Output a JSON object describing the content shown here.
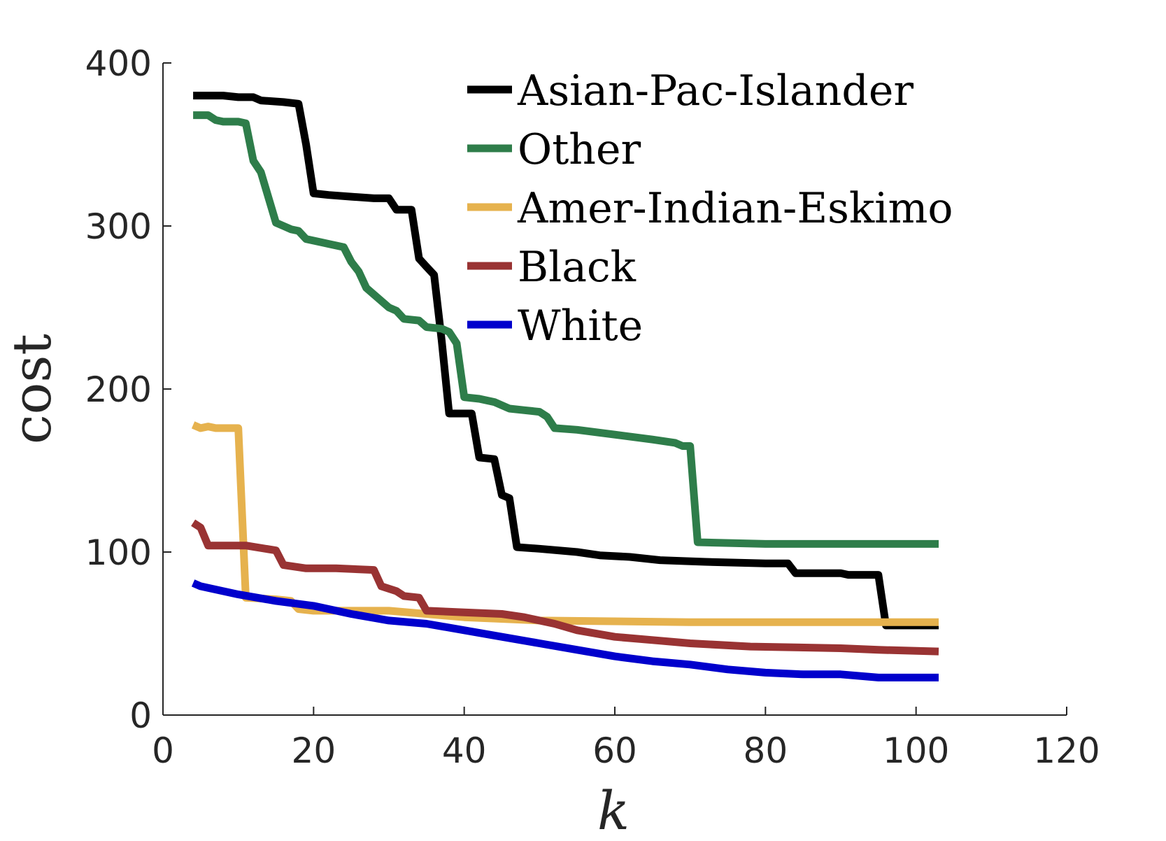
{
  "chart_data": {
    "type": "line",
    "xlabel": "k",
    "ylabel": "cost",
    "xlim": [
      0,
      120
    ],
    "ylim": [
      0,
      400
    ],
    "xticks": [
      0,
      20,
      40,
      60,
      80,
      100,
      120
    ],
    "yticks": [
      0,
      100,
      200,
      300,
      400
    ],
    "grid": false,
    "legend_position": "top-right",
    "series": [
      {
        "name": "Asian-Pac-Islander",
        "color": "#000000",
        "x": [
          4,
          6,
          8,
          10,
          12,
          13,
          16,
          18,
          19,
          20,
          22,
          25,
          28,
          30,
          31,
          33,
          34,
          35,
          36,
          37,
          38,
          41,
          42,
          44,
          45,
          46,
          47,
          50,
          55,
          58,
          62,
          66,
          72,
          80,
          83,
          84,
          90,
          91,
          95,
          96,
          103
        ],
        "y": [
          380,
          380,
          380,
          379,
          379,
          377,
          376,
          375,
          350,
          320,
          319,
          318,
          317,
          317,
          310,
          310,
          280,
          275,
          270,
          230,
          185,
          185,
          158,
          157,
          135,
          133,
          103,
          102,
          100,
          98,
          97,
          95,
          94,
          93,
          93,
          87,
          87,
          86,
          86,
          55,
          55
        ]
      },
      {
        "name": "Other",
        "color": "#2e7d4a",
        "x": [
          4,
          6,
          7,
          8,
          10,
          11,
          12,
          13,
          15,
          16,
          17,
          18,
          19,
          21,
          22,
          24,
          25,
          26,
          27,
          28,
          30,
          31,
          32,
          34,
          35,
          37,
          38,
          39,
          40,
          42,
          44,
          46,
          48,
          50,
          51,
          52,
          55,
          60,
          65,
          68,
          69,
          70,
          71,
          80,
          90,
          103
        ],
        "y": [
          368,
          368,
          365,
          364,
          364,
          363,
          340,
          333,
          302,
          300,
          298,
          297,
          292,
          290,
          289,
          287,
          278,
          272,
          262,
          258,
          250,
          248,
          243,
          242,
          238,
          237,
          235,
          228,
          195,
          194,
          192,
          188,
          187,
          186,
          183,
          176,
          175,
          172,
          169,
          167,
          165,
          165,
          106,
          105,
          105,
          105
        ]
      },
      {
        "name": "Amer-Indian-Eskimo",
        "color": "#e6b24e",
        "x": [
          4,
          5,
          6,
          7,
          8,
          9,
          10,
          11,
          15,
          17,
          18,
          20,
          30,
          40,
          50,
          70,
          103
        ],
        "y": [
          178,
          176,
          177,
          176,
          176,
          176,
          176,
          72,
          71,
          70,
          65,
          64,
          64,
          60,
          58,
          57,
          57
        ]
      },
      {
        "name": "Black",
        "color": "#993333",
        "x": [
          4,
          5,
          6,
          10,
          11,
          15,
          16,
          19,
          23,
          28,
          29,
          31,
          32,
          34,
          35,
          40,
          45,
          48,
          50,
          52,
          55,
          60,
          65,
          70,
          78,
          90,
          95,
          103
        ],
        "y": [
          118,
          115,
          104,
          104,
          104,
          101,
          92,
          90,
          90,
          89,
          79,
          76,
          73,
          72,
          64,
          63,
          62,
          60,
          58,
          56,
          52,
          48,
          46,
          44,
          42,
          41,
          40,
          39
        ]
      },
      {
        "name": "White",
        "color": "#0000cc",
        "x": [
          4,
          5,
          6,
          10,
          15,
          20,
          25,
          30,
          35,
          40,
          45,
          50,
          55,
          60,
          65,
          70,
          75,
          80,
          85,
          90,
          95,
          103
        ],
        "y": [
          81,
          79,
          78,
          74,
          70,
          67,
          62,
          58,
          56,
          52,
          48,
          44,
          40,
          36,
          33,
          31,
          28,
          26,
          25,
          25,
          23,
          23
        ]
      }
    ]
  }
}
